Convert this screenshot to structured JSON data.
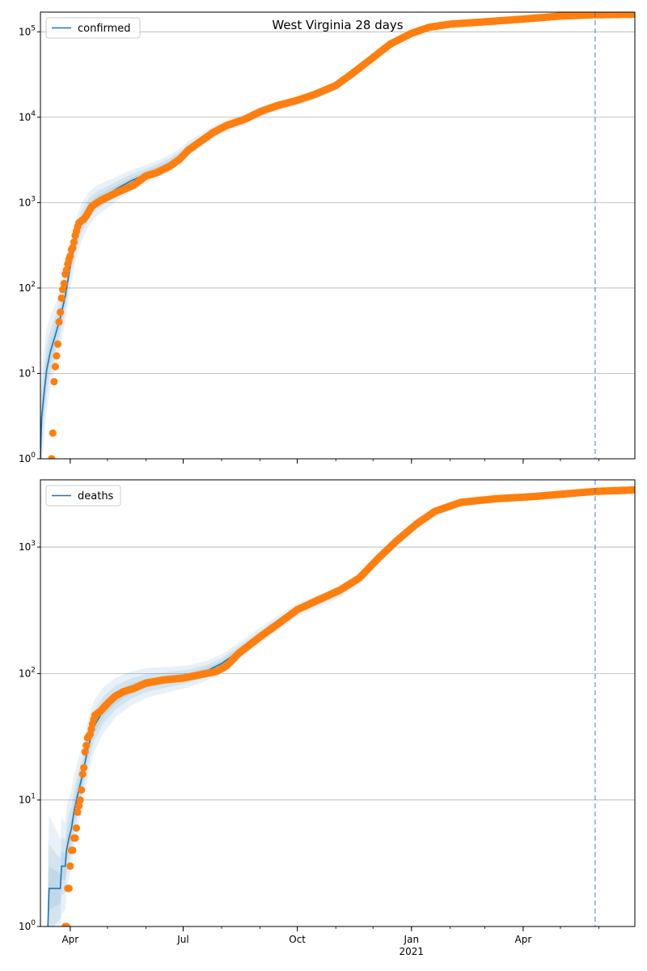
{
  "chart_data": [
    {
      "type": "line",
      "title": "West Virginia 28 days",
      "yscale": "log",
      "ylim": [
        1,
        170000
      ],
      "xlim": [
        "2020-03-08",
        "2021-06-30"
      ],
      "y_ticks": [
        {
          "value": 1,
          "base": "10",
          "exp": "0"
        },
        {
          "value": 10,
          "base": "10",
          "exp": "1"
        },
        {
          "value": 100,
          "base": "10",
          "exp": "2"
        },
        {
          "value": 1000,
          "base": "10",
          "exp": "3"
        },
        {
          "value": 10000,
          "base": "10",
          "exp": "4"
        },
        {
          "value": 100000,
          "base": "10",
          "exp": "5"
        }
      ],
      "x_ticks": [],
      "grid": "y",
      "legend": {
        "position": "top-left",
        "entries": [
          "confirmed"
        ]
      },
      "projection_date": "2021-05-29",
      "colors": {
        "model": "#1f77b4",
        "observed": "#ff7f0e",
        "band": "#1f77b4",
        "vline": "#1f77b4"
      },
      "series": [
        {
          "name": "confirmed",
          "kind": "model-line",
          "points": [
            [
              "2020-03-08",
              1
            ],
            [
              "2020-03-09",
              3
            ],
            [
              "2020-03-11",
              6
            ],
            [
              "2020-03-13",
              11
            ],
            [
              "2020-03-16",
              18
            ],
            [
              "2020-03-20",
              28
            ],
            [
              "2020-03-24",
              45
            ],
            [
              "2020-03-28",
              80
            ],
            [
              "2020-04-01",
              180
            ],
            [
              "2020-04-05",
              350
            ],
            [
              "2020-04-10",
              580
            ],
            [
              "2020-04-16",
              850
            ],
            [
              "2020-04-22",
              1050
            ],
            [
              "2020-05-01",
              1250
            ],
            [
              "2020-05-10",
              1500
            ],
            [
              "2020-05-20",
              1800
            ],
            [
              "2020-06-01",
              2150
            ],
            [
              "2020-06-10",
              2450
            ],
            [
              "2020-06-20",
              2900
            ],
            [
              "2020-06-28",
              3500
            ],
            [
              "2020-07-05",
              4300
            ],
            [
              "2020-07-15",
              5300
            ],
            [
              "2020-07-25",
              6700
            ],
            [
              "2020-08-05",
              8000
            ],
            [
              "2020-08-20",
              9500
            ],
            [
              "2020-09-01",
              11500
            ],
            [
              "2020-09-15",
              13500
            ],
            [
              "2020-10-01",
              15500
            ],
            [
              "2020-10-15",
              18000
            ],
            [
              "2020-11-01",
              23000
            ],
            [
              "2020-11-15",
              32000
            ],
            [
              "2020-12-01",
              50000
            ],
            [
              "2020-12-15",
              70000
            ],
            [
              "2021-01-01",
              95000
            ],
            [
              "2021-01-15",
              112000
            ],
            [
              "2021-02-01",
              122000
            ],
            [
              "2021-03-01",
              130000
            ],
            [
              "2021-04-01",
              140000
            ],
            [
              "2021-05-01",
              152000
            ],
            [
              "2021-05-29",
              158000
            ],
            [
              "2021-06-30",
              160000
            ]
          ]
        },
        {
          "name": "",
          "kind": "observed",
          "points": [
            [
              "2020-03-17",
              1
            ],
            [
              "2020-03-18",
              2
            ],
            [
              "2020-03-19",
              8
            ],
            [
              "2020-03-20",
              12
            ],
            [
              "2020-03-21",
              16
            ],
            [
              "2020-03-22",
              22
            ],
            [
              "2020-03-23",
              40
            ],
            [
              "2020-03-24",
              52
            ],
            [
              "2020-03-25",
              76
            ],
            [
              "2020-03-26",
              96
            ],
            [
              "2020-03-27",
              113
            ],
            [
              "2020-03-28",
              145
            ],
            [
              "2020-03-29",
              162
            ],
            [
              "2020-03-30",
              191
            ],
            [
              "2020-03-31",
              217
            ],
            [
              "2020-04-01",
              237
            ],
            [
              "2020-04-02",
              282
            ],
            [
              "2020-04-03",
              296
            ],
            [
              "2020-04-04",
              345
            ],
            [
              "2020-04-05",
              412
            ],
            [
              "2020-04-06",
              462
            ],
            [
              "2020-04-07",
              523
            ],
            [
              "2020-04-08",
              577
            ],
            [
              "2020-04-10",
              611
            ],
            [
              "2020-04-12",
              640
            ],
            [
              "2020-04-14",
              702
            ],
            [
              "2020-04-16",
              785
            ],
            [
              "2020-04-18",
              890
            ],
            [
              "2020-04-21",
              960
            ],
            [
              "2020-04-25",
              1050
            ],
            [
              "2020-05-01",
              1160
            ],
            [
              "2020-05-08",
              1300
            ],
            [
              "2020-05-15",
              1440
            ],
            [
              "2020-05-22",
              1600
            ],
            [
              "2020-06-01",
              2050
            ],
            [
              "2020-06-10",
              2250
            ],
            [
              "2020-06-20",
              2650
            ],
            [
              "2020-06-28",
              3200
            ],
            [
              "2020-07-05",
              4100
            ],
            [
              "2020-07-15",
              5200
            ],
            [
              "2020-07-25",
              6600
            ],
            [
              "2020-08-05",
              8000
            ],
            [
              "2020-08-20",
              9500
            ],
            [
              "2020-09-01",
              11600
            ],
            [
              "2020-09-15",
              13700
            ],
            [
              "2020-10-01",
              15800
            ],
            [
              "2020-10-15",
              18500
            ],
            [
              "2020-11-01",
              23500
            ],
            [
              "2020-11-15",
              33000
            ],
            [
              "2020-12-01",
              50000
            ],
            [
              "2020-12-15",
              72000
            ],
            [
              "2021-01-01",
              96000
            ],
            [
              "2021-01-15",
              113000
            ],
            [
              "2021-02-01",
              123000
            ],
            [
              "2021-03-01",
              131000
            ],
            [
              "2021-04-01",
              141000
            ],
            [
              "2021-05-01",
              153000
            ],
            [
              "2021-05-29",
              158500
            ],
            [
              "2021-06-30",
              161000
            ]
          ]
        }
      ]
    },
    {
      "type": "line",
      "title": "",
      "yscale": "log",
      "ylim": [
        1,
        3400
      ],
      "xlim": [
        "2020-03-08",
        "2021-06-30"
      ],
      "y_ticks": [
        {
          "value": 1,
          "base": "10",
          "exp": "0"
        },
        {
          "value": 10,
          "base": "10",
          "exp": "1"
        },
        {
          "value": 100,
          "base": "10",
          "exp": "2"
        },
        {
          "value": 1000,
          "base": "10",
          "exp": "3"
        }
      ],
      "x_ticks": [
        {
          "date": "2020-04-01",
          "label": "Apr",
          "sub": ""
        },
        {
          "date": "2020-07-01",
          "label": "Jul",
          "sub": ""
        },
        {
          "date": "2020-10-01",
          "label": "Oct",
          "sub": ""
        },
        {
          "date": "2021-01-01",
          "label": "Jan",
          "sub": "2021"
        },
        {
          "date": "2021-04-01",
          "label": "Apr",
          "sub": ""
        }
      ],
      "grid": "y",
      "legend": {
        "position": "top-left",
        "entries": [
          "deaths"
        ]
      },
      "projection_date": "2021-05-29",
      "colors": {
        "model": "#1f77b4",
        "observed": "#ff7f0e",
        "band": "#1f77b4",
        "vline": "#1f77b4"
      },
      "series": [
        {
          "name": "deaths",
          "kind": "model-line",
          "points": [
            [
              "2020-03-14",
              1
            ],
            [
              "2020-03-15",
              2
            ],
            [
              "2020-03-24",
              2
            ],
            [
              "2020-03-25",
              3
            ],
            [
              "2020-03-28",
              3
            ],
            [
              "2020-03-29",
              4
            ],
            [
              "2020-03-31",
              5
            ],
            [
              "2020-04-02",
              6
            ],
            [
              "2020-04-04",
              8
            ],
            [
              "2020-04-07",
              11
            ],
            [
              "2020-04-11",
              16
            ],
            [
              "2020-04-15",
              25
            ],
            [
              "2020-04-20",
              38
            ],
            [
              "2020-04-28",
              52
            ],
            [
              "2020-05-08",
              65
            ],
            [
              "2020-05-20",
              76
            ],
            [
              "2020-06-01",
              84
            ],
            [
              "2020-06-20",
              90
            ],
            [
              "2020-07-05",
              95
            ],
            [
              "2020-07-20",
              105
            ],
            [
              "2020-08-01",
              120
            ],
            [
              "2020-08-15",
              150
            ],
            [
              "2020-09-01",
              200
            ],
            [
              "2020-09-15",
              250
            ],
            [
              "2020-10-01",
              320
            ],
            [
              "2020-10-20",
              380
            ],
            [
              "2020-11-05",
              450
            ],
            [
              "2020-11-20",
              560
            ],
            [
              "2020-12-05",
              800
            ],
            [
              "2020-12-20",
              1100
            ],
            [
              "2021-01-05",
              1500
            ],
            [
              "2021-01-20",
              1900
            ],
            [
              "2021-02-10",
              2250
            ],
            [
              "2021-03-10",
              2400
            ],
            [
              "2021-04-10",
              2500
            ],
            [
              "2021-05-10",
              2650
            ],
            [
              "2021-05-29",
              2750
            ],
            [
              "2021-06-30",
              2820
            ]
          ]
        },
        {
          "name": "",
          "kind": "observed",
          "points": [
            [
              "2020-03-28",
              1
            ],
            [
              "2020-03-29",
              1
            ],
            [
              "2020-03-30",
              2
            ],
            [
              "2020-03-31",
              2
            ],
            [
              "2020-04-01",
              3
            ],
            [
              "2020-04-02",
              4
            ],
            [
              "2020-04-03",
              4
            ],
            [
              "2020-04-04",
              5
            ],
            [
              "2020-04-05",
              5
            ],
            [
              "2020-04-06",
              6
            ],
            [
              "2020-04-07",
              8
            ],
            [
              "2020-04-08",
              9
            ],
            [
              "2020-04-09",
              10
            ],
            [
              "2020-04-10",
              12
            ],
            [
              "2020-04-11",
              16
            ],
            [
              "2020-04-12",
              18
            ],
            [
              "2020-04-13",
              24
            ],
            [
              "2020-04-14",
              27
            ],
            [
              "2020-04-15",
              31
            ],
            [
              "2020-04-17",
              33
            ],
            [
              "2020-04-19",
              40
            ],
            [
              "2020-04-21",
              47
            ],
            [
              "2020-04-25",
              50
            ],
            [
              "2020-05-01",
              58
            ],
            [
              "2020-05-07",
              66
            ],
            [
              "2020-05-14",
              72
            ],
            [
              "2020-05-22",
              76
            ],
            [
              "2020-06-01",
              84
            ],
            [
              "2020-06-15",
              89
            ],
            [
              "2020-07-01",
              92
            ],
            [
              "2020-07-15",
              98
            ],
            [
              "2020-07-28",
              104
            ],
            [
              "2020-08-05",
              115
            ],
            [
              "2020-08-15",
              145
            ],
            [
              "2020-09-01",
              195
            ],
            [
              "2020-09-15",
              245
            ],
            [
              "2020-10-01",
              320
            ],
            [
              "2020-10-20",
              390
            ],
            [
              "2020-11-05",
              460
            ],
            [
              "2020-11-20",
              570
            ],
            [
              "2020-12-05",
              810
            ],
            [
              "2020-12-20",
              1120
            ],
            [
              "2021-01-05",
              1520
            ],
            [
              "2021-01-20",
              1920
            ],
            [
              "2021-02-10",
              2260
            ],
            [
              "2021-03-10",
              2410
            ],
            [
              "2021-04-10",
              2510
            ],
            [
              "2021-05-10",
              2660
            ],
            [
              "2021-05-29",
              2755
            ],
            [
              "2021-06-30",
              2830
            ]
          ]
        }
      ]
    }
  ]
}
